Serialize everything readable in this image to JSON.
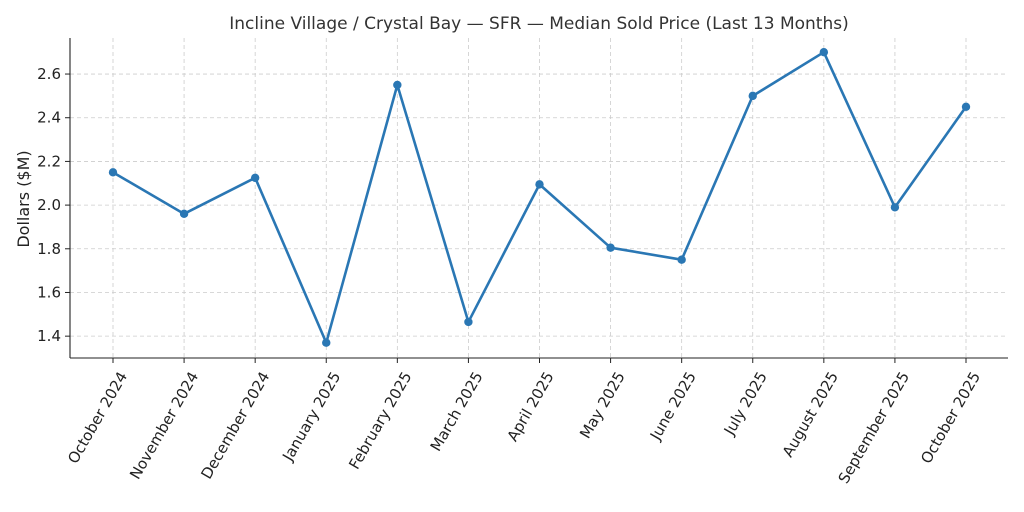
{
  "chart_data": {
    "type": "line",
    "title": "Incline Village / Crystal Bay — SFR — Median Sold Price (Last 13 Months)",
    "xlabel": "",
    "ylabel": "Dollars ($M)",
    "categories": [
      "October 2024",
      "November 2024",
      "December 2024",
      "January 2025",
      "February 2025",
      "March 2025",
      "April 2025",
      "May 2025",
      "June 2025",
      "July 2025",
      "August 2025",
      "September 2025",
      "October 2025"
    ],
    "series": [
      {
        "values": [
          2.15,
          1.96,
          2.125,
          1.37,
          2.55,
          1.465,
          2.095,
          1.805,
          1.75,
          2.5,
          2.7,
          1.99,
          2.45
        ]
      }
    ],
    "ylim": [
      1.3,
      2.765
    ],
    "yticks": [
      "1.4",
      "1.6",
      "1.8",
      "2.0",
      "2.2",
      "2.4",
      "2.6"
    ],
    "grid": true,
    "line_color": "#2a77b4"
  }
}
